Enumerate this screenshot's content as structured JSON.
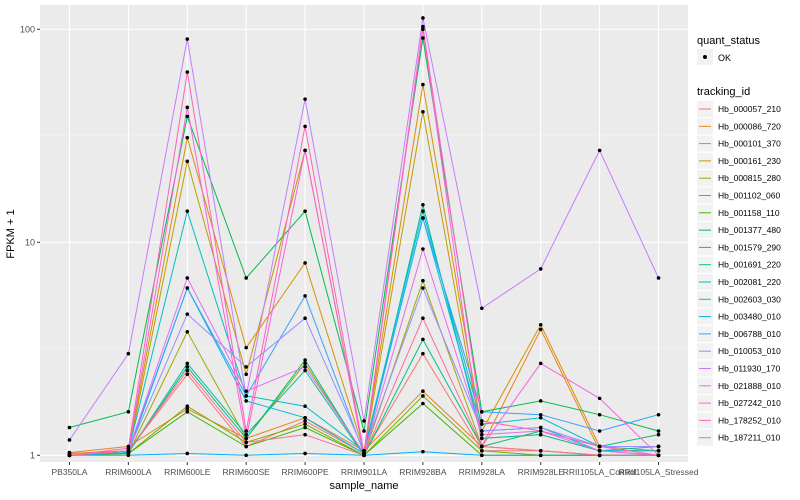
{
  "chart_data": {
    "type": "line",
    "title": "",
    "xlabel": "sample_name",
    "ylabel": "FPKM + 1",
    "yscale": "log10",
    "ylim": [
      0.93,
      130
    ],
    "yticks": [
      1,
      10,
      100
    ],
    "ytick_labels": [
      "1",
      "10",
      "100"
    ],
    "grid": true,
    "categories": [
      "PB350LA",
      "RRIM600LA",
      "RRIM600LE",
      "RRIM600SE",
      "RRIM600PE",
      "RRIM901LA",
      "RRIM928BA",
      "RRIM928LA",
      "RRIM928LE",
      "RRII105LA_Control",
      "RRII105LA_Stressed"
    ],
    "legend_position": "right",
    "legend_shape": {
      "title": "quant_status",
      "label": "OK"
    },
    "legend_color_title": "tracking_id",
    "series": [
      {
        "name": "Hb_000057_210",
        "color": "#F8766D",
        "values": [
          1.02,
          1.05,
          2.4,
          1.1,
          1.45,
          1.02,
          3.0,
          1.05,
          1.05,
          1.0,
          1.0
        ]
      },
      {
        "name": "Hb_000086_720",
        "color": "#E7851E",
        "values": [
          1.03,
          1.1,
          1.65,
          1.2,
          1.5,
          1.05,
          2.0,
          1.1,
          3.9,
          1.05,
          1.05
        ]
      },
      {
        "name": "Hb_000101_370",
        "color": "#D89000",
        "values": [
          1.02,
          1.05,
          31,
          3.2,
          8.0,
          1.05,
          55,
          1.3,
          4.1,
          1.1,
          1.05
        ]
      },
      {
        "name": "Hb_000161_230",
        "color": "#C09B00",
        "values": [
          1.0,
          1.03,
          24,
          2.4,
          27,
          1.02,
          41,
          1.2,
          1.25,
          1.05,
          1.0
        ]
      },
      {
        "name": "Hb_000815_280",
        "color": "#A3A500",
        "values": [
          1.0,
          1.02,
          3.8,
          1.2,
          2.7,
          1.0,
          6.6,
          1.1,
          1.05,
          1.0,
          1.0
        ]
      },
      {
        "name": "Hb_001102_060",
        "color": "#7CAE00",
        "values": [
          1.0,
          1.02,
          1.7,
          1.15,
          1.4,
          1.0,
          1.9,
          1.05,
          1.0,
          1.0,
          1.0
        ]
      },
      {
        "name": "Hb_001158_110",
        "color": "#39B600",
        "values": [
          1.0,
          1.02,
          1.6,
          1.1,
          1.35,
          1.0,
          1.75,
          1.0,
          1.0,
          1.0,
          1.0
        ]
      },
      {
        "name": "Hb_001377_480",
        "color": "#00BB4E",
        "values": [
          1.35,
          1.6,
          39,
          6.8,
          14,
          1.3,
          91,
          1.6,
          1.8,
          1.55,
          1.3
        ]
      },
      {
        "name": "Hb_001579_290",
        "color": "#00BF7D",
        "values": [
          1.0,
          1.03,
          2.6,
          1.2,
          2.8,
          1.0,
          3.5,
          1.1,
          1.3,
          1.1,
          1.25
        ]
      },
      {
        "name": "Hb_001691_220",
        "color": "#00C1A3",
        "values": [
          1.0,
          1.03,
          2.7,
          1.25,
          2.5,
          1.0,
          15,
          1.2,
          1.25,
          1.05,
          1.1
        ]
      },
      {
        "name": "Hb_002081_220",
        "color": "#00BFC4",
        "values": [
          1.0,
          1.05,
          14,
          1.9,
          1.7,
          1.05,
          14,
          1.4,
          1.5,
          1.1,
          1.1
        ]
      },
      {
        "name": "Hb_002603_030",
        "color": "#00BAE0",
        "values": [
          1.0,
          1.03,
          6.1,
          1.8,
          1.5,
          1.02,
          13,
          1.3,
          1.35,
          1.05,
          1.05
        ]
      },
      {
        "name": "Hb_003480_010",
        "color": "#00B0F6",
        "values": [
          1.0,
          1.0,
          1.02,
          1.0,
          1.02,
          1.0,
          1.04,
          1.0,
          1.0,
          1.0,
          1.0
        ]
      },
      {
        "name": "Hb_006788_010",
        "color": "#35A2FF",
        "values": [
          1.0,
          1.05,
          6.1,
          1.9,
          5.6,
          1.02,
          13,
          1.6,
          1.55,
          1.3,
          1.55
        ]
      },
      {
        "name": "Hb_010053_010",
        "color": "#9590FF",
        "values": [
          1.0,
          1.05,
          4.6,
          2.6,
          4.4,
          1.05,
          6.1,
          1.3,
          1.35,
          1.1,
          1.1
        ]
      },
      {
        "name": "Hb_011930_170",
        "color": "#C77CFF",
        "values": [
          1.18,
          3.0,
          90,
          1.9,
          47,
          1.45,
          113,
          4.9,
          7.5,
          27,
          6.8
        ]
      },
      {
        "name": "Hb_021888_010",
        "color": "#E76BF3",
        "values": [
          1.0,
          1.05,
          6.8,
          2.0,
          2.6,
          1.02,
          9.3,
          1.25,
          1.3,
          1.05,
          1.0
        ]
      },
      {
        "name": "Hb_027242_010",
        "color": "#FA62DB",
        "values": [
          1.0,
          1.05,
          43,
          1.2,
          27,
          1.0,
          100,
          1.1,
          2.7,
          1.85,
          1.0
        ]
      },
      {
        "name": "Hb_178252_010",
        "color": "#FF62BC",
        "values": [
          1.0,
          1.08,
          63,
          1.3,
          35,
          1.02,
          103,
          1.45,
          1.3,
          1.1,
          1.0
        ]
      },
      {
        "name": "Hb_187211_010",
        "color": "#FF6C91",
        "values": [
          1.0,
          1.05,
          2.5,
          1.15,
          1.25,
          1.0,
          4.4,
          1.1,
          1.05,
          1.0,
          1.0
        ]
      }
    ]
  }
}
